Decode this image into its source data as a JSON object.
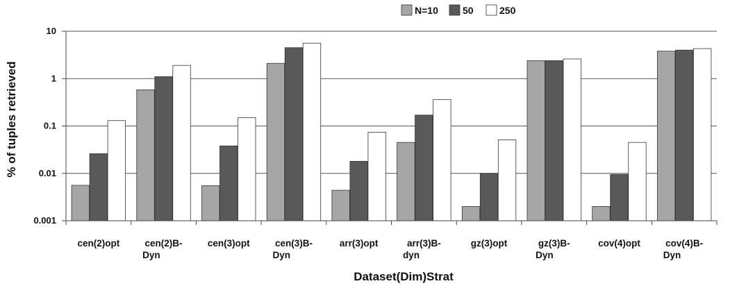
{
  "chart_data": {
    "type": "bar",
    "title": "",
    "xlabel": "Dataset(Dim)Strat",
    "ylabel": "% of tuples retrieved",
    "yscale": "log",
    "ylim": [
      0.001,
      10
    ],
    "yticks": [
      "0.001",
      "0.01",
      "0.1",
      "1",
      "10"
    ],
    "grid": "horizontal",
    "legend_position": "top",
    "categories": [
      [
        "cen(2)opt"
      ],
      [
        "cen(2)B-",
        "Dyn"
      ],
      [
        "cen(3)opt"
      ],
      [
        "cen(3)B-",
        "Dyn"
      ],
      [
        "arr(3)opt"
      ],
      [
        "arr(3)B-",
        "dyn"
      ],
      [
        "gz(3)opt"
      ],
      [
        "gz(3)B-",
        "Dyn"
      ],
      [
        "cov(4)opt"
      ],
      [
        "cov(4)B-",
        "Dyn"
      ]
    ],
    "series": [
      {
        "name": "N=10",
        "color": "#a6a6a6",
        "values": [
          0.0056,
          0.58,
          0.0055,
          2.1,
          0.0044,
          0.045,
          0.002,
          2.4,
          0.002,
          3.8
        ]
      },
      {
        "name": "50",
        "color": "#595959",
        "values": [
          0.026,
          1.1,
          0.038,
          4.5,
          0.018,
          0.17,
          0.01,
          2.4,
          0.0095,
          4.0
        ]
      },
      {
        "name": "250",
        "color": "#ffffff",
        "values": [
          0.13,
          1.9,
          0.15,
          5.6,
          0.074,
          0.36,
          0.051,
          2.6,
          0.045,
          4.3
        ]
      }
    ]
  }
}
